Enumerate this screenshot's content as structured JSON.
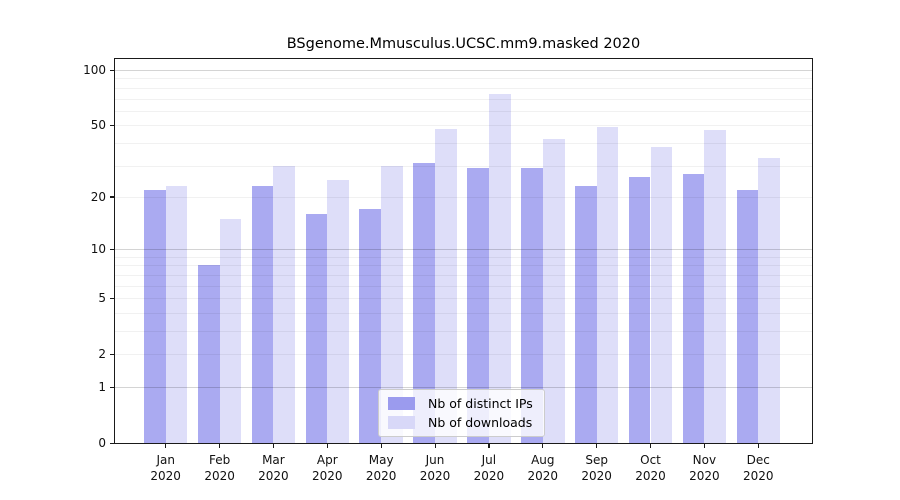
{
  "title": "BSgenome.Mmusculus.UCSC.mm9.masked 2020",
  "legend": {
    "items": [
      {
        "label": "Nb of distinct IPs",
        "color": "#9b9bee"
      },
      {
        "label": "Nb of downloads",
        "color": "#d8d8f8"
      }
    ]
  },
  "y_axis": {
    "tick_labels": [
      "0",
      "1",
      "2",
      "5",
      "10",
      "20",
      "50",
      "100"
    ]
  },
  "x_axis": {
    "months": [
      "Jan",
      "Feb",
      "Mar",
      "Apr",
      "May",
      "Jun",
      "Jul",
      "Aug",
      "Sep",
      "Oct",
      "Nov",
      "Dec"
    ],
    "year": "2020"
  },
  "chart_data": {
    "type": "bar",
    "title": "BSgenome.Mmusculus.UCSC.mm9.masked 2020",
    "categories": [
      "Jan 2020",
      "Feb 2020",
      "Mar 2020",
      "Apr 2020",
      "May 2020",
      "Jun 2020",
      "Jul 2020",
      "Aug 2020",
      "Sep 2020",
      "Oct 2020",
      "Nov 2020",
      "Dec 2020"
    ],
    "series": [
      {
        "name": "Nb of distinct IPs",
        "color": "#9b9bee",
        "values": [
          22,
          8,
          23,
          16,
          17,
          31,
          29,
          29,
          23,
          26,
          27,
          22
        ]
      },
      {
        "name": "Nb of downloads",
        "color": "#d8d8f8",
        "values": [
          23,
          15,
          30,
          25,
          30,
          48,
          74,
          42,
          49,
          38,
          47,
          33
        ]
      }
    ],
    "yscale": "log1p",
    "ylim": [
      0,
      100
    ],
    "y_ticks": [
      0,
      1,
      2,
      5,
      10,
      20,
      50,
      100
    ],
    "grid": true,
    "grid_minor_values": [
      2,
      3,
      4,
      5,
      6,
      7,
      8,
      9,
      20,
      30,
      40,
      50,
      60,
      70,
      80,
      90
    ],
    "grid_major_values": [
      1,
      10,
      100
    ],
    "legend_position": "lower center"
  }
}
